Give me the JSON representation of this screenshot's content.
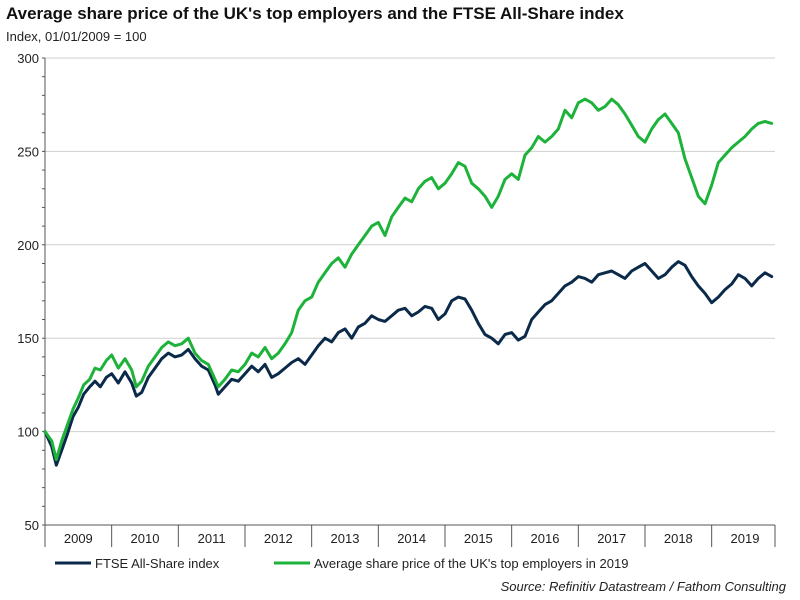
{
  "chart_data": {
    "type": "line",
    "title": "Average share price of the UK's top employers and the FTSE All-Share index",
    "subtitle": "Index, 01/01/2009 = 100",
    "source": "Source: Refinitiv Datastream / Fathom Consulting",
    "ylim": [
      50,
      300
    ],
    "yticks": [
      50,
      100,
      150,
      200,
      250,
      300
    ],
    "xlim": [
      2009.0,
      2019.95
    ],
    "xtick_labels": [
      "2009",
      "2010",
      "2011",
      "2012",
      "2013",
      "2014",
      "2015",
      "2016",
      "2017",
      "2018",
      "2019"
    ],
    "grid": "horizontal",
    "legend_position": "bottom",
    "series": [
      {
        "name": "FTSE All-Share index",
        "color": "#0b2a4a",
        "x": [
          2009.0,
          2009.1,
          2009.17,
          2009.25,
          2009.33,
          2009.42,
          2009.5,
          2009.58,
          2009.67,
          2009.75,
          2009.83,
          2009.92,
          2010.0,
          2010.1,
          2010.2,
          2010.3,
          2010.37,
          2010.45,
          2010.55,
          2010.65,
          2010.75,
          2010.85,
          2010.95,
          2011.05,
          2011.15,
          2011.25,
          2011.35,
          2011.45,
          2011.55,
          2011.6,
          2011.7,
          2011.8,
          2011.9,
          2012.0,
          2012.1,
          2012.2,
          2012.3,
          2012.4,
          2012.5,
          2012.6,
          2012.7,
          2012.8,
          2012.9,
          2013.0,
          2013.1,
          2013.2,
          2013.3,
          2013.4,
          2013.5,
          2013.6,
          2013.7,
          2013.8,
          2013.9,
          2014.0,
          2014.1,
          2014.2,
          2014.3,
          2014.4,
          2014.5,
          2014.6,
          2014.7,
          2014.8,
          2014.9,
          2015.0,
          2015.1,
          2015.2,
          2015.3,
          2015.4,
          2015.5,
          2015.6,
          2015.7,
          2015.8,
          2015.9,
          2016.0,
          2016.1,
          2016.2,
          2016.3,
          2016.4,
          2016.5,
          2016.6,
          2016.7,
          2016.8,
          2016.9,
          2017.0,
          2017.1,
          2017.2,
          2017.3,
          2017.4,
          2017.5,
          2017.6,
          2017.7,
          2017.8,
          2017.9,
          2018.0,
          2018.1,
          2018.2,
          2018.3,
          2018.4,
          2018.5,
          2018.6,
          2018.7,
          2018.8,
          2018.9,
          2019.0,
          2019.1,
          2019.2,
          2019.3,
          2019.4,
          2019.5,
          2019.6,
          2019.7,
          2019.8,
          2019.9
        ],
        "y": [
          100,
          92,
          82,
          90,
          98,
          108,
          113,
          120,
          124,
          127,
          124,
          129,
          131,
          126,
          132,
          126,
          119,
          121,
          129,
          134,
          139,
          142,
          140,
          141,
          144,
          139,
          135,
          133,
          125,
          120,
          124,
          128,
          127,
          131,
          135,
          132,
          136,
          129,
          131,
          134,
          137,
          139,
          136,
          141,
          146,
          150,
          148,
          153,
          155,
          150,
          156,
          158,
          162,
          160,
          159,
          162,
          165,
          166,
          162,
          164,
          167,
          166,
          160,
          163,
          170,
          172,
          171,
          165,
          158,
          152,
          150,
          147,
          152,
          153,
          149,
          151,
          160,
          164,
          168,
          170,
          174,
          178,
          180,
          183,
          182,
          180,
          184,
          185,
          186,
          184,
          182,
          186,
          188,
          190,
          186,
          182,
          184,
          188,
          191,
          189,
          183,
          178,
          174,
          169,
          172,
          176,
          179,
          184,
          182,
          178,
          182,
          185,
          183
        ]
      },
      {
        "name": "Average share price of the UK's top employers in 2019",
        "color": "#1db33b",
        "x": [
          2009.0,
          2009.1,
          2009.17,
          2009.25,
          2009.33,
          2009.42,
          2009.5,
          2009.58,
          2009.67,
          2009.75,
          2009.83,
          2009.92,
          2010.0,
          2010.1,
          2010.2,
          2010.3,
          2010.37,
          2010.45,
          2010.55,
          2010.65,
          2010.75,
          2010.85,
          2010.95,
          2011.05,
          2011.15,
          2011.25,
          2011.35,
          2011.45,
          2011.55,
          2011.6,
          2011.7,
          2011.8,
          2011.9,
          2012.0,
          2012.1,
          2012.2,
          2012.3,
          2012.4,
          2012.5,
          2012.6,
          2012.7,
          2012.8,
          2012.9,
          2013.0,
          2013.1,
          2013.2,
          2013.3,
          2013.4,
          2013.5,
          2013.6,
          2013.7,
          2013.8,
          2013.9,
          2014.0,
          2014.1,
          2014.2,
          2014.3,
          2014.4,
          2014.5,
          2014.6,
          2014.7,
          2014.8,
          2014.9,
          2015.0,
          2015.1,
          2015.2,
          2015.3,
          2015.4,
          2015.5,
          2015.6,
          2015.7,
          2015.8,
          2015.9,
          2016.0,
          2016.1,
          2016.2,
          2016.3,
          2016.4,
          2016.5,
          2016.6,
          2016.7,
          2016.8,
          2016.9,
          2017.0,
          2017.1,
          2017.2,
          2017.3,
          2017.4,
          2017.5,
          2017.6,
          2017.7,
          2017.8,
          2017.9,
          2018.0,
          2018.1,
          2018.2,
          2018.3,
          2018.4,
          2018.5,
          2018.6,
          2018.7,
          2018.8,
          2018.9,
          2019.0,
          2019.1,
          2019.2,
          2019.3,
          2019.4,
          2019.5,
          2019.6,
          2019.7,
          2019.8,
          2019.9
        ],
        "y": [
          100,
          95,
          85,
          95,
          103,
          112,
          118,
          125,
          128,
          134,
          133,
          138,
          141,
          134,
          139,
          133,
          124,
          127,
          135,
          140,
          145,
          148,
          146,
          147,
          150,
          142,
          138,
          136,
          128,
          124,
          128,
          133,
          132,
          136,
          142,
          140,
          145,
          139,
          142,
          147,
          153,
          165,
          170,
          172,
          180,
          185,
          190,
          193,
          188,
          195,
          200,
          205,
          210,
          212,
          205,
          215,
          220,
          225,
          223,
          230,
          234,
          236,
          230,
          233,
          238,
          244,
          242,
          233,
          230,
          226,
          220,
          226,
          235,
          238,
          235,
          248,
          252,
          258,
          255,
          258,
          262,
          272,
          268,
          276,
          278,
          276,
          272,
          274,
          278,
          275,
          270,
          264,
          258,
          255,
          262,
          267,
          270,
          265,
          260,
          246,
          236,
          226,
          222,
          232,
          244,
          248,
          252,
          255,
          258,
          262,
          265,
          266,
          265
        ]
      }
    ]
  }
}
